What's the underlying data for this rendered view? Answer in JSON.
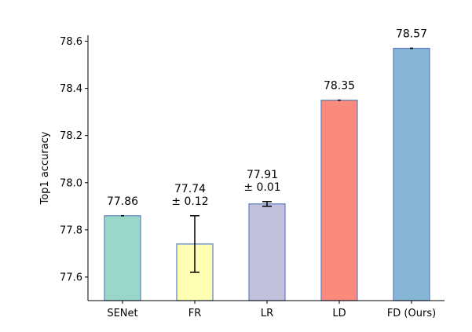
{
  "chart_data": {
    "type": "bar",
    "title": "",
    "xlabel": "",
    "ylabel": "Top1 accuracy",
    "ylim": [
      77.5,
      78.625
    ],
    "yticks": [
      77.6,
      77.8,
      78.0,
      78.2,
      78.4,
      78.6
    ],
    "ytick_labels": [
      "77.6",
      "77.8",
      "78.0",
      "78.2",
      "78.4",
      "78.6"
    ],
    "categories": [
      "SENet",
      "FR",
      "LR",
      "LD",
      "FD (Ours)"
    ],
    "values": [
      77.86,
      77.74,
      77.91,
      78.35,
      78.57
    ],
    "errors": [
      0,
      0.12,
      0.01,
      0,
      0
    ],
    "bar_colors": [
      "#99d8c9",
      "#ffffb3",
      "#c2c0dd",
      "#fb8a7e",
      "#86b5d6"
    ],
    "bar_edge_color": "#5b7fbf",
    "data_labels": [
      [
        "77.86"
      ],
      [
        "77.74",
        "± 0.12"
      ],
      [
        "77.91",
        "± 0.01"
      ],
      [
        "78.35"
      ],
      [
        "78.57"
      ]
    ],
    "grid": false,
    "legend": "none"
  }
}
